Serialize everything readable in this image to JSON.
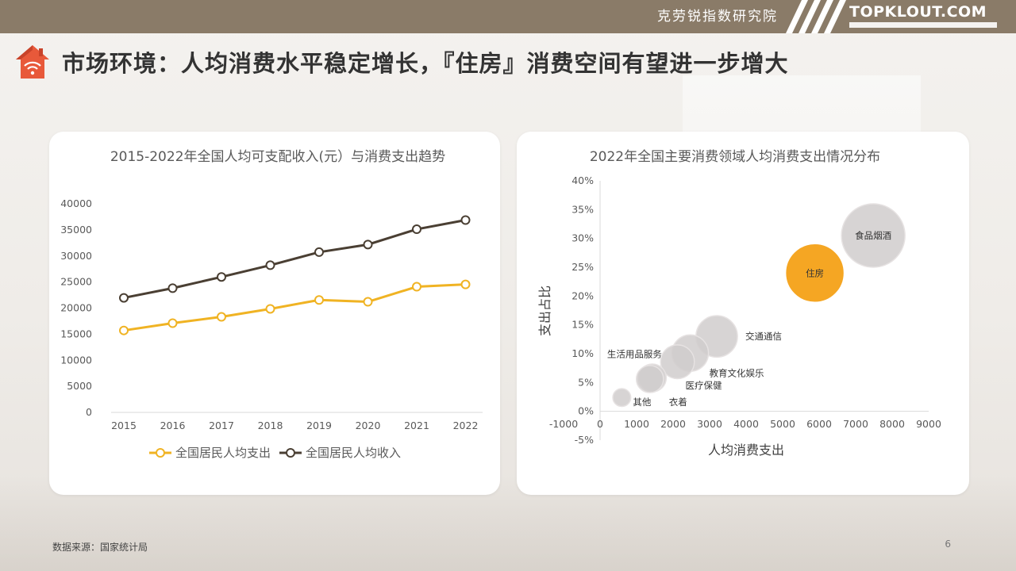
{
  "header": {
    "institute": "克劳锐指数研究院",
    "logo_text": "TOPKLOUT.COM"
  },
  "page_title": "市场环境：人均消费水平稳定增长，『住房』消费空间有望进一步增大",
  "footer": {
    "source": "数据来源：国家统计局",
    "page_number": "6"
  },
  "colors": {
    "topbar": "#8a7b68",
    "expense_line": "#f0b323",
    "income_line": "#4a3f33",
    "housing_bubble": "#f5a623",
    "other_bubbles": "#d0cccc",
    "logo_icon": "#e8593a"
  },
  "icons": {
    "title_icon": "house-wifi-icon"
  },
  "chart_data": [
    {
      "type": "line",
      "title": "2015-2022年全国人均可支配收入(元）与消费支出趋势",
      "categories": [
        "2015",
        "2016",
        "2017",
        "2018",
        "2019",
        "2020",
        "2021",
        "2022"
      ],
      "series": [
        {
          "name": "全国居民人均支出",
          "values": [
            15712,
            17111,
            18322,
            19853,
            21559,
            21210,
            24100,
            24538
          ]
        },
        {
          "name": "全国居民人均收入",
          "values": [
            21966,
            23821,
            25974,
            28228,
            30733,
            32189,
            35128,
            36883
          ]
        }
      ],
      "xlabel": "",
      "ylabel": "",
      "ylim": [
        0,
        40000
      ],
      "yticks": [
        "0",
        "5000",
        "10000",
        "15000",
        "20000",
        "25000",
        "30000",
        "35000",
        "40000"
      ],
      "legend": "bottom",
      "grid": false
    },
    {
      "type": "scatter",
      "title": "2022年全国主要消费领域人均消费支出情况分布",
      "xlabel": "人均消费支出",
      "ylabel": "支出占比",
      "xlim": [
        -1000,
        9000
      ],
      "ylim": [
        -5,
        40
      ],
      "xticks": [
        "-1000",
        "0",
        "1000",
        "2000",
        "3000",
        "4000",
        "5000",
        "6000",
        "7000",
        "8000",
        "9000"
      ],
      "yticks": [
        "-5%",
        "0%",
        "5%",
        "10%",
        "15%",
        "20%",
        "25%",
        "30%",
        "35%",
        "40%"
      ],
      "points": [
        {
          "name": "食品烟酒",
          "x": 7481,
          "y": 30.5,
          "size": 7481
        },
        {
          "name": "住房",
          "x": 5882,
          "y": 24.0,
          "size": 5882
        },
        {
          "name": "交通通信",
          "x": 3195,
          "y": 13.0,
          "size": 3195
        },
        {
          "name": "教育文化娱乐",
          "x": 2469,
          "y": 10.1,
          "size": 2469
        },
        {
          "name": "医疗保健",
          "x": 2120,
          "y": 8.6,
          "size": 2120
        },
        {
          "name": "生活用品服务",
          "x": 1432,
          "y": 5.8,
          "size": 1432
        },
        {
          "name": "衣着",
          "x": 1365,
          "y": 5.6,
          "size": 1365
        },
        {
          "name": "其他",
          "x": 595,
          "y": 2.4,
          "size": 595
        }
      ],
      "highlight": "住房",
      "grid": false
    }
  ]
}
